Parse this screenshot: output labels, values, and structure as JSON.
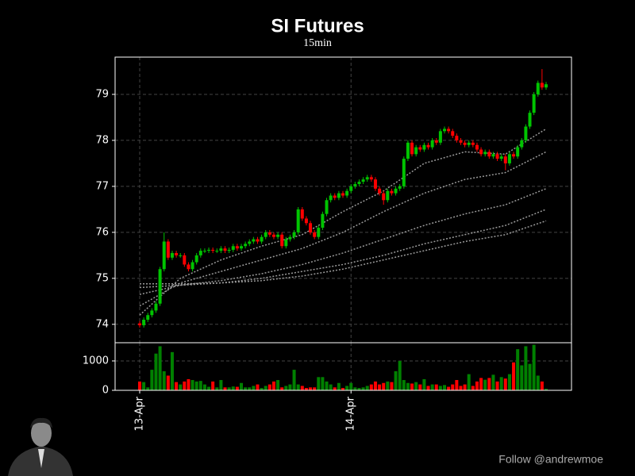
{
  "chart_data": {
    "type": "candlestick",
    "title": "SI Futures",
    "subtitle": "15min",
    "categories": [
      "13-Apr",
      null,
      null,
      null,
      null,
      null,
      null,
      null,
      null,
      null,
      null,
      null,
      null,
      null,
      null,
      null,
      null,
      null,
      null,
      null,
      null,
      null,
      null,
      null,
      null,
      null,
      null,
      null,
      null,
      null,
      null,
      null,
      null,
      null,
      null,
      null,
      null,
      null,
      null,
      null,
      null,
      null,
      null,
      null,
      null,
      null,
      null,
      null,
      null,
      null,
      null,
      null,
      "14-Apr",
      null,
      null,
      null,
      null,
      null,
      null,
      null,
      null,
      null,
      null,
      null,
      null,
      null,
      null,
      null,
      null,
      null,
      null,
      null,
      null,
      null,
      null,
      null,
      null,
      null,
      null,
      null,
      null,
      null,
      null,
      null,
      null,
      null,
      null,
      null,
      null,
      null,
      null,
      null,
      null,
      null,
      null,
      null,
      null,
      null,
      null,
      null,
      null
    ],
    "open": [
      74.02,
      73.98,
      74.1,
      74.2,
      74.3,
      74.45,
      75.2,
      75.8,
      75.45,
      75.55,
      75.5,
      75.5,
      75.3,
      75.2,
      75.35,
      75.5,
      75.6,
      75.6,
      75.62,
      75.6,
      75.6,
      75.65,
      75.6,
      75.62,
      75.7,
      75.65,
      75.7,
      75.75,
      75.8,
      75.85,
      75.8,
      75.9,
      76.0,
      75.95,
      75.9,
      75.95,
      75.7,
      75.85,
      75.9,
      76.0,
      76.5,
      76.3,
      76.2,
      76.0,
      75.9,
      76.1,
      76.4,
      76.7,
      76.8,
      76.75,
      76.85,
      76.8,
      76.9,
      77.0,
      77.05,
      77.1,
      77.15,
      77.2,
      77.15,
      76.95,
      76.85,
      76.7,
      76.9,
      76.85,
      76.95,
      77.0,
      77.6,
      77.95,
      77.7,
      77.85,
      77.8,
      77.9,
      77.85,
      78.0,
      77.95,
      78.2,
      78.25,
      78.2,
      78.1,
      78.0,
      77.95,
      77.9,
      77.95,
      77.9,
      77.8,
      77.7,
      77.75,
      77.65,
      77.7,
      77.6,
      77.65,
      77.5,
      77.7,
      77.65,
      77.85,
      78.0,
      78.3,
      78.6,
      79.0,
      79.25,
      79.15
    ],
    "high": [
      74.07,
      74.15,
      74.25,
      74.35,
      74.5,
      75.25,
      76.0,
      75.85,
      75.6,
      75.6,
      75.55,
      75.55,
      75.35,
      75.4,
      75.55,
      75.65,
      75.65,
      75.67,
      75.67,
      75.65,
      75.7,
      75.7,
      75.67,
      75.75,
      75.75,
      75.75,
      75.8,
      75.85,
      75.9,
      75.9,
      75.95,
      76.05,
      76.05,
      76.0,
      76.0,
      76.0,
      75.9,
      75.95,
      76.05,
      76.55,
      76.55,
      76.35,
      76.25,
      76.05,
      76.15,
      76.45,
      76.75,
      76.85,
      76.85,
      76.9,
      76.9,
      76.95,
      77.05,
      77.1,
      77.15,
      77.2,
      77.25,
      77.25,
      77.2,
      77.0,
      76.9,
      76.95,
      76.95,
      77.0,
      77.05,
      77.65,
      78.0,
      78.0,
      77.9,
      77.9,
      77.95,
      77.95,
      78.05,
      78.05,
      78.25,
      78.3,
      78.3,
      78.25,
      78.15,
      78.05,
      78.0,
      78.0,
      78.0,
      77.95,
      77.85,
      77.8,
      77.8,
      77.75,
      77.75,
      77.7,
      77.7,
      77.75,
      77.75,
      77.9,
      78.05,
      78.35,
      78.65,
      79.05,
      79.3,
      79.55,
      79.27
    ],
    "low": [
      73.93,
      73.93,
      74.05,
      74.15,
      74.25,
      74.4,
      75.15,
      75.4,
      75.4,
      75.45,
      75.45,
      75.25,
      75.15,
      75.15,
      75.3,
      75.45,
      75.55,
      75.55,
      75.55,
      75.55,
      75.55,
      75.55,
      75.55,
      75.57,
      75.6,
      75.6,
      75.65,
      75.7,
      75.75,
      75.75,
      75.75,
      75.85,
      75.9,
      75.85,
      75.85,
      75.65,
      75.65,
      75.8,
      75.85,
      75.95,
      76.25,
      76.15,
      75.95,
      75.85,
      75.85,
      76.05,
      76.35,
      76.65,
      76.7,
      76.7,
      76.75,
      76.75,
      76.85,
      76.95,
      77.0,
      77.05,
      77.1,
      77.1,
      76.9,
      76.8,
      76.6,
      76.65,
      76.8,
      76.8,
      76.9,
      76.95,
      77.55,
      77.65,
      77.65,
      77.75,
      77.75,
      77.8,
      77.8,
      77.9,
      77.9,
      78.15,
      78.15,
      78.05,
      77.95,
      77.9,
      77.85,
      77.85,
      77.85,
      77.75,
      77.65,
      77.65,
      77.6,
      77.6,
      77.55,
      77.55,
      77.35,
      77.45,
      77.6,
      77.6,
      77.8,
      77.95,
      78.25,
      78.55,
      78.95,
      79.1,
      79.1
    ],
    "close": [
      73.98,
      74.1,
      74.2,
      74.3,
      74.45,
      75.2,
      75.8,
      75.45,
      75.55,
      75.5,
      75.5,
      75.3,
      75.2,
      75.35,
      75.5,
      75.6,
      75.6,
      75.62,
      75.6,
      75.6,
      75.65,
      75.6,
      75.62,
      75.7,
      75.65,
      75.7,
      75.75,
      75.8,
      75.85,
      75.8,
      75.9,
      76.0,
      75.95,
      75.9,
      75.95,
      75.7,
      75.85,
      75.9,
      76.0,
      76.5,
      76.3,
      76.2,
      76.0,
      75.9,
      76.1,
      76.4,
      76.7,
      76.8,
      76.75,
      76.85,
      76.8,
      76.9,
      77.0,
      77.05,
      77.1,
      77.15,
      77.2,
      77.15,
      76.95,
      76.85,
      76.7,
      76.9,
      76.85,
      76.95,
      77.0,
      77.6,
      77.95,
      77.7,
      77.85,
      77.8,
      77.9,
      77.85,
      78.0,
      77.95,
      78.2,
      78.25,
      78.2,
      78.1,
      78.0,
      77.95,
      77.9,
      77.95,
      77.9,
      77.8,
      77.7,
      77.75,
      77.65,
      77.7,
      77.6,
      77.65,
      77.5,
      77.7,
      77.65,
      77.85,
      78.0,
      78.3,
      78.6,
      79.0,
      79.25,
      79.15,
      79.22
    ],
    "up_color": "#00c400",
    "down_color": "#ff0000",
    "ylim": [
      73.6,
      79.81
    ],
    "yticks": [
      74,
      75,
      76,
      77,
      78,
      79
    ],
    "grid": true,
    "moving_averages": [
      {
        "color": "#9a9a9a",
        "x": [
          0,
          10,
          20,
          30,
          40,
          50,
          60,
          70,
          80,
          90,
          100
        ],
        "values": [
          74.2,
          75.0,
          75.4,
          75.7,
          75.95,
          76.45,
          76.9,
          77.5,
          77.75,
          77.7,
          78.25
        ]
      },
      {
        "color": "#9a9a9a",
        "x": [
          0,
          10,
          20,
          30,
          40,
          50,
          60,
          70,
          80,
          90,
          100
        ],
        "values": [
          74.4,
          74.9,
          75.15,
          75.4,
          75.65,
          76.0,
          76.45,
          76.85,
          77.15,
          77.3,
          77.75
        ]
      },
      {
        "color": "#9a9a9a",
        "x": [
          0,
          10,
          20,
          30,
          40,
          50,
          60,
          70,
          80,
          90,
          100
        ],
        "values": [
          74.65,
          74.85,
          74.95,
          75.1,
          75.3,
          75.55,
          75.85,
          76.15,
          76.4,
          76.6,
          76.95
        ]
      },
      {
        "color": "#9a9a9a",
        "x": [
          0,
          10,
          20,
          30,
          40,
          50,
          60,
          70,
          80,
          90,
          100
        ],
        "values": [
          74.8,
          74.85,
          74.9,
          75.0,
          75.15,
          75.3,
          75.5,
          75.75,
          75.95,
          76.15,
          76.5
        ]
      },
      {
        "color": "#9a9a9a",
        "x": [
          0,
          10,
          20,
          30,
          40,
          50,
          60,
          70,
          80,
          90,
          100
        ],
        "values": [
          74.88,
          74.88,
          74.9,
          74.95,
          75.05,
          75.2,
          75.4,
          75.6,
          75.8,
          75.95,
          76.25
        ]
      }
    ],
    "volume": {
      "values": [
        300,
        280,
        100,
        700,
        1250,
        1500,
        650,
        500,
        1300,
        280,
        200,
        300,
        380,
        350,
        300,
        320,
        200,
        120,
        300,
        100,
        350,
        100,
        100,
        130,
        120,
        250,
        100,
        100,
        150,
        200,
        80,
        150,
        200,
        300,
        350,
        100,
        150,
        200,
        700,
        200,
        150,
        80,
        100,
        100,
        450,
        450,
        300,
        200,
        100,
        250,
        80,
        150,
        250,
        100,
        80,
        100,
        150,
        200,
        300,
        200,
        250,
        300,
        280,
        650,
        1000,
        350,
        250,
        230,
        280,
        200,
        380,
        150,
        200,
        200,
        150,
        180,
        120,
        200,
        350,
        150,
        200,
        550,
        150,
        300,
        420,
        360,
        420,
        530,
        300,
        450,
        400,
        550,
        950,
        1400,
        850,
        1500,
        900,
        1550,
        500,
        300,
        50
      ],
      "up_color": "#008000",
      "down_color": "#ff0000",
      "ylim": [
        0,
        1620
      ],
      "yticks": [
        0,
        1000
      ]
    }
  },
  "footer": "Follow @andrewmoe"
}
